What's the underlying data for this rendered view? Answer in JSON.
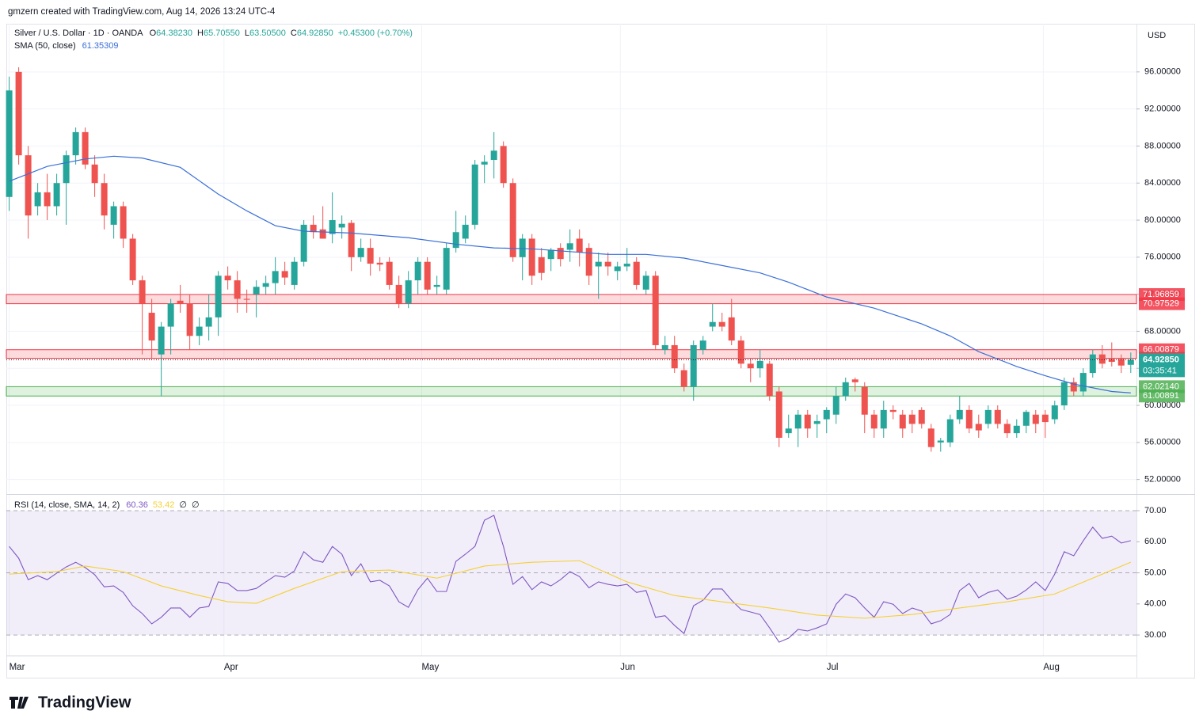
{
  "header": {
    "credit": "gmzern created with TradingView.com, Aug 14, 2026 13:24 UTC-4"
  },
  "footer": {
    "logo": "TradingView"
  },
  "chart_data": [
    {
      "type": "candlestick",
      "title": "Silver / U.S. Dollar · 1D · OANDA",
      "legend_values": [
        {
          "key": "O",
          "text": "64.38230"
        },
        {
          "key": "H",
          "text": "65.70550"
        },
        {
          "key": "L",
          "text": "63.50500"
        },
        {
          "key": "C",
          "text": "64.92850"
        }
      ],
      "change": "+0.45300 (+0.70%)",
      "axis_unit": "USD",
      "up_color": "#26a69a",
      "down_color": "#ef5350",
      "ohlc": [
        [
          82.5,
          95.5,
          81,
          94
        ],
        [
          96,
          96.5,
          86,
          87
        ],
        [
          87,
          88,
          78,
          80.5
        ],
        [
          81.5,
          84,
          80.5,
          83
        ],
        [
          83,
          85,
          80,
          81.5
        ],
        [
          81.5,
          85,
          80.5,
          84
        ],
        [
          84,
          87.5,
          79.5,
          87
        ],
        [
          87,
          90,
          86,
          89.5
        ],
        [
          89.5,
          90,
          85.5,
          86
        ],
        [
          86,
          87,
          82.5,
          84
        ],
        [
          84,
          85,
          79,
          80.5
        ],
        [
          79.5,
          82,
          78,
          81.5
        ],
        [
          81.5,
          82,
          77,
          78
        ],
        [
          78,
          78.5,
          73,
          73.5
        ],
        [
          73.5,
          74,
          65.5,
          71
        ],
        [
          70,
          71.5,
          65,
          67
        ],
        [
          65.5,
          69,
          61,
          68.5
        ],
        [
          68.5,
          71.5,
          65.5,
          71
        ],
        [
          71.3,
          73,
          70,
          71
        ],
        [
          71,
          72,
          66,
          67.5
        ],
        [
          67.5,
          69.5,
          66.5,
          68.5
        ],
        [
          68.5,
          72,
          67,
          69.5
        ],
        [
          69.5,
          74.5,
          67.5,
          74
        ],
        [
          74,
          75,
          72.5,
          73.5
        ],
        [
          73.5,
          74.5,
          70,
          71.5
        ],
        [
          71.5,
          72.5,
          70,
          71.4
        ],
        [
          72,
          73.5,
          69.5,
          72.8
        ],
        [
          72.8,
          74,
          72,
          73.2
        ],
        [
          73.2,
          76,
          72,
          74.5
        ],
        [
          74.5,
          75.5,
          73,
          73.8
        ],
        [
          73,
          76,
          72.5,
          75.5
        ],
        [
          75.5,
          80,
          75,
          79.5
        ],
        [
          79.5,
          80.5,
          78,
          78.7
        ],
        [
          79,
          81.5,
          78,
          78
        ],
        [
          78.5,
          83,
          77.5,
          80
        ],
        [
          79.2,
          80.5,
          78,
          79.6
        ],
        [
          79.7,
          80,
          74.5,
          76
        ],
        [
          76,
          78,
          75.5,
          77
        ],
        [
          77,
          78,
          74,
          75.3
        ],
        [
          75.4,
          76,
          74.5,
          75.2
        ],
        [
          75.5,
          76,
          72.5,
          73
        ],
        [
          73,
          74,
          70.5,
          71
        ],
        [
          71,
          74.5,
          70.5,
          73.5
        ],
        [
          73.5,
          76,
          72,
          75.5
        ],
        [
          75.5,
          76,
          72,
          72.5
        ],
        [
          72.8,
          74,
          72,
          73
        ],
        [
          72.5,
          77.5,
          72,
          77
        ],
        [
          77,
          81,
          76.5,
          78.7
        ],
        [
          78,
          80.5,
          77.5,
          79.5
        ],
        [
          79.5,
          86.5,
          79,
          86
        ],
        [
          86,
          87,
          84,
          86.3
        ],
        [
          86.5,
          89.5,
          84.5,
          87.5
        ],
        [
          88,
          88.5,
          83.5,
          84
        ],
        [
          84,
          84.5,
          75.5,
          76
        ],
        [
          76,
          78.5,
          73.5,
          78
        ],
        [
          78,
          78.5,
          73,
          74
        ],
        [
          76,
          77,
          73.5,
          74.3
        ],
        [
          75.8,
          77,
          74.5,
          76.8
        ],
        [
          77,
          77.5,
          75,
          75.8
        ],
        [
          76.8,
          79,
          75.5,
          77.5
        ],
        [
          78,
          79,
          75,
          76.5
        ],
        [
          77,
          77.5,
          73,
          74
        ],
        [
          75,
          76.5,
          71.5,
          75.5
        ],
        [
          75.5,
          76.5,
          74,
          75
        ],
        [
          74.5,
          75.5,
          73.5,
          75
        ],
        [
          75,
          77,
          74.5,
          75.3
        ],
        [
          75.5,
          76,
          72.5,
          73
        ],
        [
          72.5,
          74.5,
          72,
          74
        ],
        [
          74,
          74.5,
          66,
          66.5
        ],
        [
          66,
          67.5,
          65.5,
          66.5
        ],
        [
          66.5,
          67.5,
          63.5,
          64
        ],
        [
          63.8,
          64.5,
          61.5,
          62
        ],
        [
          62,
          67,
          60.5,
          66.5
        ],
        [
          66,
          67.5,
          65.5,
          67
        ],
        [
          68.5,
          71,
          68,
          69
        ],
        [
          69,
          70,
          68,
          68.5
        ],
        [
          69.5,
          71.5,
          66.5,
          67
        ],
        [
          67,
          67.5,
          64,
          64.5
        ],
        [
          64.5,
          65,
          62.5,
          64
        ],
        [
          64,
          66,
          63,
          64.8
        ],
        [
          64.5,
          64.8,
          60.5,
          61
        ],
        [
          61.5,
          62,
          55.5,
          56.5
        ],
        [
          57,
          59,
          56.5,
          57.5
        ],
        [
          57.5,
          59.5,
          55.5,
          59
        ],
        [
          59,
          59.5,
          56.5,
          57.5
        ],
        [
          58,
          59,
          56.5,
          58.3
        ],
        [
          58.5,
          59.8,
          57,
          59.5
        ],
        [
          59,
          62,
          58,
          61
        ],
        [
          61,
          63,
          60.5,
          62.5
        ],
        [
          62.8,
          63,
          61.5,
          62.5
        ],
        [
          62,
          62.5,
          57,
          59
        ],
        [
          59,
          59.5,
          56.5,
          57.5
        ],
        [
          57.5,
          60.5,
          56.5,
          59.5
        ],
        [
          59.5,
          60,
          58.5,
          59.3
        ],
        [
          59,
          59.5,
          56.5,
          57.5
        ],
        [
          59,
          59.5,
          57,
          58
        ],
        [
          59.5,
          59.8,
          57.5,
          58
        ],
        [
          57.5,
          58,
          55,
          55.5
        ],
        [
          56,
          56.5,
          55,
          56.2
        ],
        [
          56,
          59,
          55.5,
          58.5
        ],
        [
          58.5,
          61,
          58,
          59.5
        ],
        [
          59.5,
          60,
          57,
          57.5
        ],
        [
          58,
          59,
          56.5,
          57.3
        ],
        [
          58,
          60,
          57.5,
          59.5
        ],
        [
          59.5,
          60,
          57.5,
          58
        ],
        [
          58,
          58.5,
          56.5,
          57
        ],
        [
          57,
          58.5,
          56.5,
          57.8
        ],
        [
          57.8,
          59.5,
          57,
          59.3
        ],
        [
          59,
          59.5,
          57,
          58
        ],
        [
          59,
          59.5,
          56.5,
          58.2
        ],
        [
          58.5,
          60.5,
          58,
          60
        ],
        [
          60,
          63,
          59.5,
          62.5
        ],
        [
          62.5,
          63,
          61,
          61.5
        ],
        [
          61.5,
          64,
          61,
          63.5
        ],
        [
          63.5,
          66,
          63,
          65.5
        ],
        [
          65.5,
          66.5,
          64,
          64.5
        ],
        [
          65,
          66.8,
          64.2,
          64.7
        ],
        [
          65,
          65.5,
          63.5,
          64.3
        ],
        [
          64.38,
          65.7055,
          63.505,
          64.9285
        ]
      ],
      "overlays": [
        {
          "name": "SMA (50, close)",
          "value_label": "61.35309",
          "color": "#3a6fd8",
          "x": [
            0,
            4,
            8,
            11,
            14,
            18,
            22,
            25,
            28,
            31,
            36,
            42,
            47,
            51,
            55,
            59,
            63,
            67,
            71,
            74,
            79,
            82,
            86,
            91,
            96,
            99,
            102,
            106,
            109,
            112,
            116,
            118
          ],
          "values": [
            84.2,
            85.8,
            86.6,
            86.9,
            86.7,
            85.7,
            82.8,
            81,
            79.4,
            78.8,
            78.6,
            78.1,
            77.4,
            77,
            76.9,
            76.6,
            76.3,
            76.3,
            75.9,
            75.3,
            74.3,
            73.3,
            71.7,
            70.5,
            68.8,
            67.5,
            65.8,
            64.2,
            63.2,
            62.3,
            61.5,
            61.35
          ]
        }
      ],
      "zones": [
        {
          "color": "#f23645",
          "low": 70.97529,
          "high": 71.96859
        },
        {
          "color": "#f23645",
          "low": 65.08644,
          "high": 66.00879
        },
        {
          "color": "#4caf50",
          "low": 61.00891,
          "high": {
            "value": 62.0214,
            "label": "62.02140"
          }
        }
      ],
      "last_price": {
        "value": 64.9285,
        "label": "64.92850",
        "countdown": "03:35:41",
        "color": "#26a69a"
      },
      "xlim": [
        -0.3,
        118.6
      ],
      "xticks": [
        {
          "value": 0,
          "label": "Mar"
        },
        {
          "value": 22.6,
          "label": "Apr"
        },
        {
          "value": 43.4,
          "label": "May"
        },
        {
          "value": 64.3,
          "label": "Jun"
        },
        {
          "value": 86,
          "label": "Jul"
        },
        {
          "value": 108.8,
          "label": "Aug"
        }
      ],
      "ylim": [
        50.6,
        101.2
      ],
      "yticks": [
        {
          "value": 52,
          "label": "52.00000"
        },
        {
          "value": 56,
          "label": "56.00000"
        },
        {
          "value": 60,
          "label": "60.00000"
        },
        {
          "value": 64,
          "label": "64.00000"
        },
        {
          "value": 68,
          "label": "68.00000"
        },
        {
          "value": 72,
          "label": "72.00000"
        },
        {
          "value": 76,
          "label": "76.00000"
        },
        {
          "value": 80,
          "label": "80.00000"
        },
        {
          "value": 84,
          "label": "84.00000"
        },
        {
          "value": 88,
          "label": "88.00000"
        },
        {
          "value": 92,
          "label": "92.00000"
        },
        {
          "value": 96,
          "label": "96.00000"
        }
      ],
      "grid": true
    },
    {
      "type": "line",
      "title": "RSI (14, close, SMA, 14, 2)",
      "extra_legend": [
        "∅",
        "∅"
      ],
      "band": [
        30,
        70
      ],
      "band_color": "#7e57c2",
      "dashed_levels": [
        30,
        50,
        70
      ],
      "series": [
        {
          "color": "#7e57c2",
          "value_label": "60.36",
          "values": [
            58.5,
            54.7,
            47.8,
            49.1,
            47.8,
            49.9,
            51.9,
            53.4,
            51.7,
            49.4,
            45.5,
            45.8,
            43.7,
            39.4,
            36.9,
            33.6,
            35.7,
            38.7,
            38.7,
            35.7,
            38.7,
            39.2,
            47.1,
            46.6,
            44.3,
            44.3,
            45,
            47.1,
            49.1,
            48.6,
            50.6,
            56.8,
            54.2,
            53.4,
            58.5,
            56,
            49.1,
            52.9,
            47.1,
            47.6,
            45.8,
            40.7,
            38.9,
            44.6,
            48.3,
            44,
            44,
            53.7,
            56,
            58.5,
            66.9,
            68.5,
            58.5,
            46.3,
            48.8,
            44.6,
            47.1,
            45.8,
            47.8,
            50.4,
            48.8,
            45.2,
            47.1,
            46.3,
            45.8,
            46.3,
            43.7,
            44.3,
            35.7,
            36.2,
            33.1,
            30.5,
            39.4,
            41.2,
            44.8,
            44.8,
            41.2,
            38.2,
            37.4,
            36.6,
            32.3,
            27.7,
            29,
            31.8,
            31.3,
            32.3,
            33.6,
            39.9,
            43.2,
            42,
            38.7,
            35.7,
            40.7,
            39.9,
            36.9,
            38.7,
            37.7,
            33.6,
            34.6,
            36.6,
            44.3,
            46.6,
            42,
            43.7,
            44.5,
            41.5,
            42.5,
            44.5,
            47.1,
            44.3,
            49.6,
            56.8,
            55.5,
            60.3,
            64.7,
            61.1,
            61.8,
            59.6,
            60.36
          ]
        },
        {
          "color": "#f5d033",
          "value_label": "53.42",
          "x": [
            0,
            5,
            8,
            12,
            16,
            20,
            23,
            26,
            30,
            35,
            40,
            45,
            50,
            55,
            60,
            65,
            70,
            75,
            80,
            85,
            90,
            95,
            100,
            105,
            110,
            114,
            118
          ],
          "values": [
            49.6,
            50.4,
            52.2,
            50.4,
            45.8,
            42.7,
            40.7,
            40.2,
            45,
            50.4,
            50.9,
            48.3,
            52.2,
            53.4,
            53.9,
            47.1,
            42.7,
            40.7,
            38.7,
            36.4,
            35.4,
            36.6,
            38.7,
            40.7,
            43.2,
            48.3,
            53.42
          ]
        }
      ],
      "ylim": [
        23.4,
        75.1
      ],
      "yticks": [
        {
          "value": 30,
          "label": "30.00"
        },
        {
          "value": 40,
          "label": "40.00"
        },
        {
          "value": 50,
          "label": "50.00"
        },
        {
          "value": 60,
          "label": "60.00"
        },
        {
          "value": 70,
          "label": "70.00"
        }
      ]
    }
  ]
}
